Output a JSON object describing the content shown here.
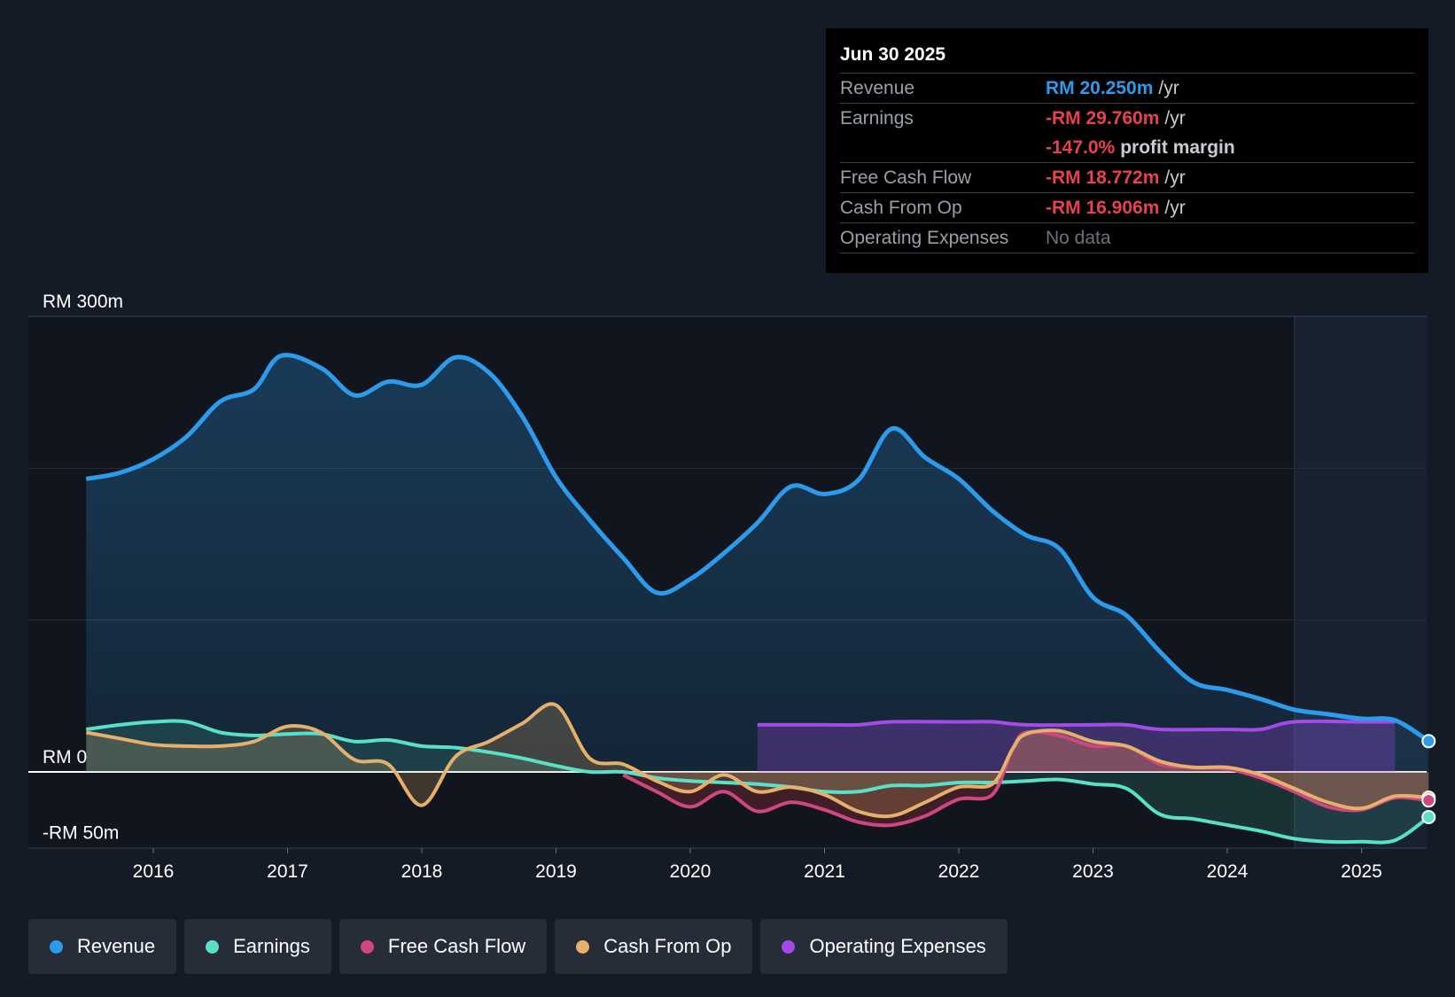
{
  "colors": {
    "background": "#151b26",
    "revenue": "#2d9bec",
    "earnings": "#58e1c7",
    "fcf": "#d0467f",
    "cfo": "#e5b06b",
    "opex": "#a54ae8",
    "negative": "#e8424f"
  },
  "tooltip": {
    "date": "Jun 30 2025",
    "rows": [
      {
        "label": "Revenue",
        "value": "RM 20.250m",
        "unit": "/yr"
      },
      {
        "label": "Earnings",
        "value": "-RM 29.760m",
        "unit": "/yr"
      },
      {
        "label": "",
        "value": "-147.0%",
        "unit": "profit margin"
      },
      {
        "label": "Free Cash Flow",
        "value": "-RM 18.772m",
        "unit": "/yr"
      },
      {
        "label": "Cash From Op",
        "value": "-RM 16.906m",
        "unit": "/yr"
      },
      {
        "label": "Operating Expenses",
        "value": "No data",
        "unit": ""
      }
    ]
  },
  "legend": [
    {
      "label": "Revenue",
      "color": "#2d9bec"
    },
    {
      "label": "Earnings",
      "color": "#58e1c7"
    },
    {
      "label": "Free Cash Flow",
      "color": "#d0467f"
    },
    {
      "label": "Cash From Op",
      "color": "#e5b06b"
    },
    {
      "label": "Operating Expenses",
      "color": "#a54ae8"
    }
  ],
  "chart_data": {
    "type": "area",
    "title": "",
    "currency": "RM",
    "y_axis_labels": [
      "RM 300m",
      "RM 0",
      "-RM 50m"
    ],
    "ylim": [
      -50,
      300
    ],
    "xlim": [
      2015.0,
      2025.5
    ],
    "past_start": 2024.5,
    "x_ticks": [
      2016,
      2017,
      2018,
      2019,
      2020,
      2021,
      2022,
      2023,
      2024,
      2025
    ],
    "series": [
      {
        "name": "Revenue",
        "key": "revenue",
        "points": [
          [
            2015.5,
            193
          ],
          [
            2015.75,
            197
          ],
          [
            2016.0,
            206
          ],
          [
            2016.25,
            221
          ],
          [
            2016.5,
            244
          ],
          [
            2016.75,
            252
          ],
          [
            2016.95,
            274
          ],
          [
            2017.25,
            266
          ],
          [
            2017.5,
            248
          ],
          [
            2017.75,
            257
          ],
          [
            2018.0,
            255
          ],
          [
            2018.25,
            273
          ],
          [
            2018.5,
            263
          ],
          [
            2018.75,
            234
          ],
          [
            2019.0,
            194
          ],
          [
            2019.25,
            166
          ],
          [
            2019.5,
            141
          ],
          [
            2019.75,
            118
          ],
          [
            2020.0,
            127
          ],
          [
            2020.25,
            144
          ],
          [
            2020.5,
            164
          ],
          [
            2020.75,
            188
          ],
          [
            2021.0,
            183
          ],
          [
            2021.25,
            192
          ],
          [
            2021.5,
            226
          ],
          [
            2021.75,
            207
          ],
          [
            2022.0,
            193
          ],
          [
            2022.25,
            172
          ],
          [
            2022.5,
            156
          ],
          [
            2022.75,
            147
          ],
          [
            2023.0,
            115
          ],
          [
            2023.25,
            103
          ],
          [
            2023.5,
            79
          ],
          [
            2023.75,
            59
          ],
          [
            2024.0,
            54
          ],
          [
            2024.25,
            48
          ],
          [
            2024.5,
            41
          ],
          [
            2024.75,
            38
          ],
          [
            2025.0,
            35
          ],
          [
            2025.25,
            34
          ],
          [
            2025.5,
            20.25
          ]
        ]
      },
      {
        "name": "Earnings",
        "key": "earnings",
        "points": [
          [
            2015.5,
            28
          ],
          [
            2015.75,
            31
          ],
          [
            2016.0,
            33
          ],
          [
            2016.25,
            33
          ],
          [
            2016.5,
            26
          ],
          [
            2016.75,
            24
          ],
          [
            2017.0,
            25
          ],
          [
            2017.25,
            25
          ],
          [
            2017.5,
            20
          ],
          [
            2017.75,
            21
          ],
          [
            2018.0,
            17
          ],
          [
            2018.25,
            16
          ],
          [
            2018.5,
            13
          ],
          [
            2018.75,
            9
          ],
          [
            2019.0,
            4
          ],
          [
            2019.25,
            0
          ],
          [
            2019.5,
            0
          ],
          [
            2019.75,
            -4
          ],
          [
            2020.0,
            -6
          ],
          [
            2020.25,
            -7
          ],
          [
            2020.5,
            -8
          ],
          [
            2020.75,
            -10
          ],
          [
            2021.0,
            -13
          ],
          [
            2021.25,
            -13
          ],
          [
            2021.5,
            -9
          ],
          [
            2021.75,
            -9
          ],
          [
            2022.0,
            -7
          ],
          [
            2022.25,
            -7
          ],
          [
            2022.5,
            -6
          ],
          [
            2022.75,
            -5
          ],
          [
            2023.0,
            -8
          ],
          [
            2023.25,
            -11
          ],
          [
            2023.5,
            -28
          ],
          [
            2023.75,
            -31
          ],
          [
            2024.0,
            -35
          ],
          [
            2024.25,
            -39
          ],
          [
            2024.5,
            -44
          ],
          [
            2024.75,
            -46
          ],
          [
            2025.0,
            -46
          ],
          [
            2025.25,
            -45
          ],
          [
            2025.5,
            -29.76
          ]
        ]
      },
      {
        "name": "Free Cash Flow",
        "key": "fcf",
        "points": [
          [
            2019.5,
            -2
          ],
          [
            2019.75,
            -13
          ],
          [
            2020.0,
            -23
          ],
          [
            2020.25,
            -13
          ],
          [
            2020.5,
            -26
          ],
          [
            2020.75,
            -20
          ],
          [
            2021.0,
            -25
          ],
          [
            2021.25,
            -33
          ],
          [
            2021.5,
            -35
          ],
          [
            2021.75,
            -29
          ],
          [
            2022.0,
            -18
          ],
          [
            2022.25,
            -15
          ],
          [
            2022.4,
            15
          ],
          [
            2022.5,
            26
          ],
          [
            2022.75,
            24
          ],
          [
            2023.0,
            17
          ],
          [
            2023.25,
            17
          ],
          [
            2023.5,
            5
          ],
          [
            2023.75,
            3
          ],
          [
            2024.0,
            2
          ],
          [
            2024.25,
            -4
          ],
          [
            2024.5,
            -13
          ],
          [
            2024.75,
            -23
          ],
          [
            2025.0,
            -25
          ],
          [
            2025.25,
            -17
          ],
          [
            2025.5,
            -18.77
          ]
        ]
      },
      {
        "name": "Cash From Op",
        "key": "cfo",
        "points": [
          [
            2015.5,
            26
          ],
          [
            2015.75,
            22
          ],
          [
            2016.0,
            18
          ],
          [
            2016.25,
            17
          ],
          [
            2016.5,
            17
          ],
          [
            2016.75,
            20
          ],
          [
            2017.0,
            30
          ],
          [
            2017.25,
            26
          ],
          [
            2017.5,
            8
          ],
          [
            2017.75,
            5
          ],
          [
            2018.0,
            -22
          ],
          [
            2018.25,
            10
          ],
          [
            2018.5,
            20
          ],
          [
            2018.75,
            32
          ],
          [
            2019.0,
            44
          ],
          [
            2019.25,
            9
          ],
          [
            2019.5,
            5
          ],
          [
            2019.75,
            -6
          ],
          [
            2020.0,
            -13
          ],
          [
            2020.25,
            -2
          ],
          [
            2020.5,
            -13
          ],
          [
            2020.75,
            -10
          ],
          [
            2021.0,
            -15
          ],
          [
            2021.25,
            -26
          ],
          [
            2021.5,
            -29
          ],
          [
            2021.75,
            -20
          ],
          [
            2022.0,
            -10
          ],
          [
            2022.25,
            -8
          ],
          [
            2022.4,
            15
          ],
          [
            2022.5,
            25
          ],
          [
            2022.75,
            27
          ],
          [
            2023.0,
            20
          ],
          [
            2023.25,
            17
          ],
          [
            2023.5,
            7
          ],
          [
            2023.75,
            3
          ],
          [
            2024.0,
            3
          ],
          [
            2024.25,
            -2
          ],
          [
            2024.5,
            -11
          ],
          [
            2024.75,
            -20
          ],
          [
            2025.0,
            -24
          ],
          [
            2025.25,
            -16
          ],
          [
            2025.5,
            -16.91
          ]
        ]
      },
      {
        "name": "Operating Expenses",
        "key": "opex",
        "points": [
          [
            2020.5,
            31
          ],
          [
            2021.0,
            31
          ],
          [
            2021.25,
            31
          ],
          [
            2021.5,
            33
          ],
          [
            2022.0,
            33
          ],
          [
            2022.25,
            33
          ],
          [
            2022.5,
            31
          ],
          [
            2023.0,
            31
          ],
          [
            2023.25,
            31
          ],
          [
            2023.5,
            28
          ],
          [
            2024.0,
            28
          ],
          [
            2024.25,
            28
          ],
          [
            2024.5,
            33
          ],
          [
            2025.0,
            33
          ],
          [
            2025.25,
            33
          ]
        ]
      }
    ]
  }
}
